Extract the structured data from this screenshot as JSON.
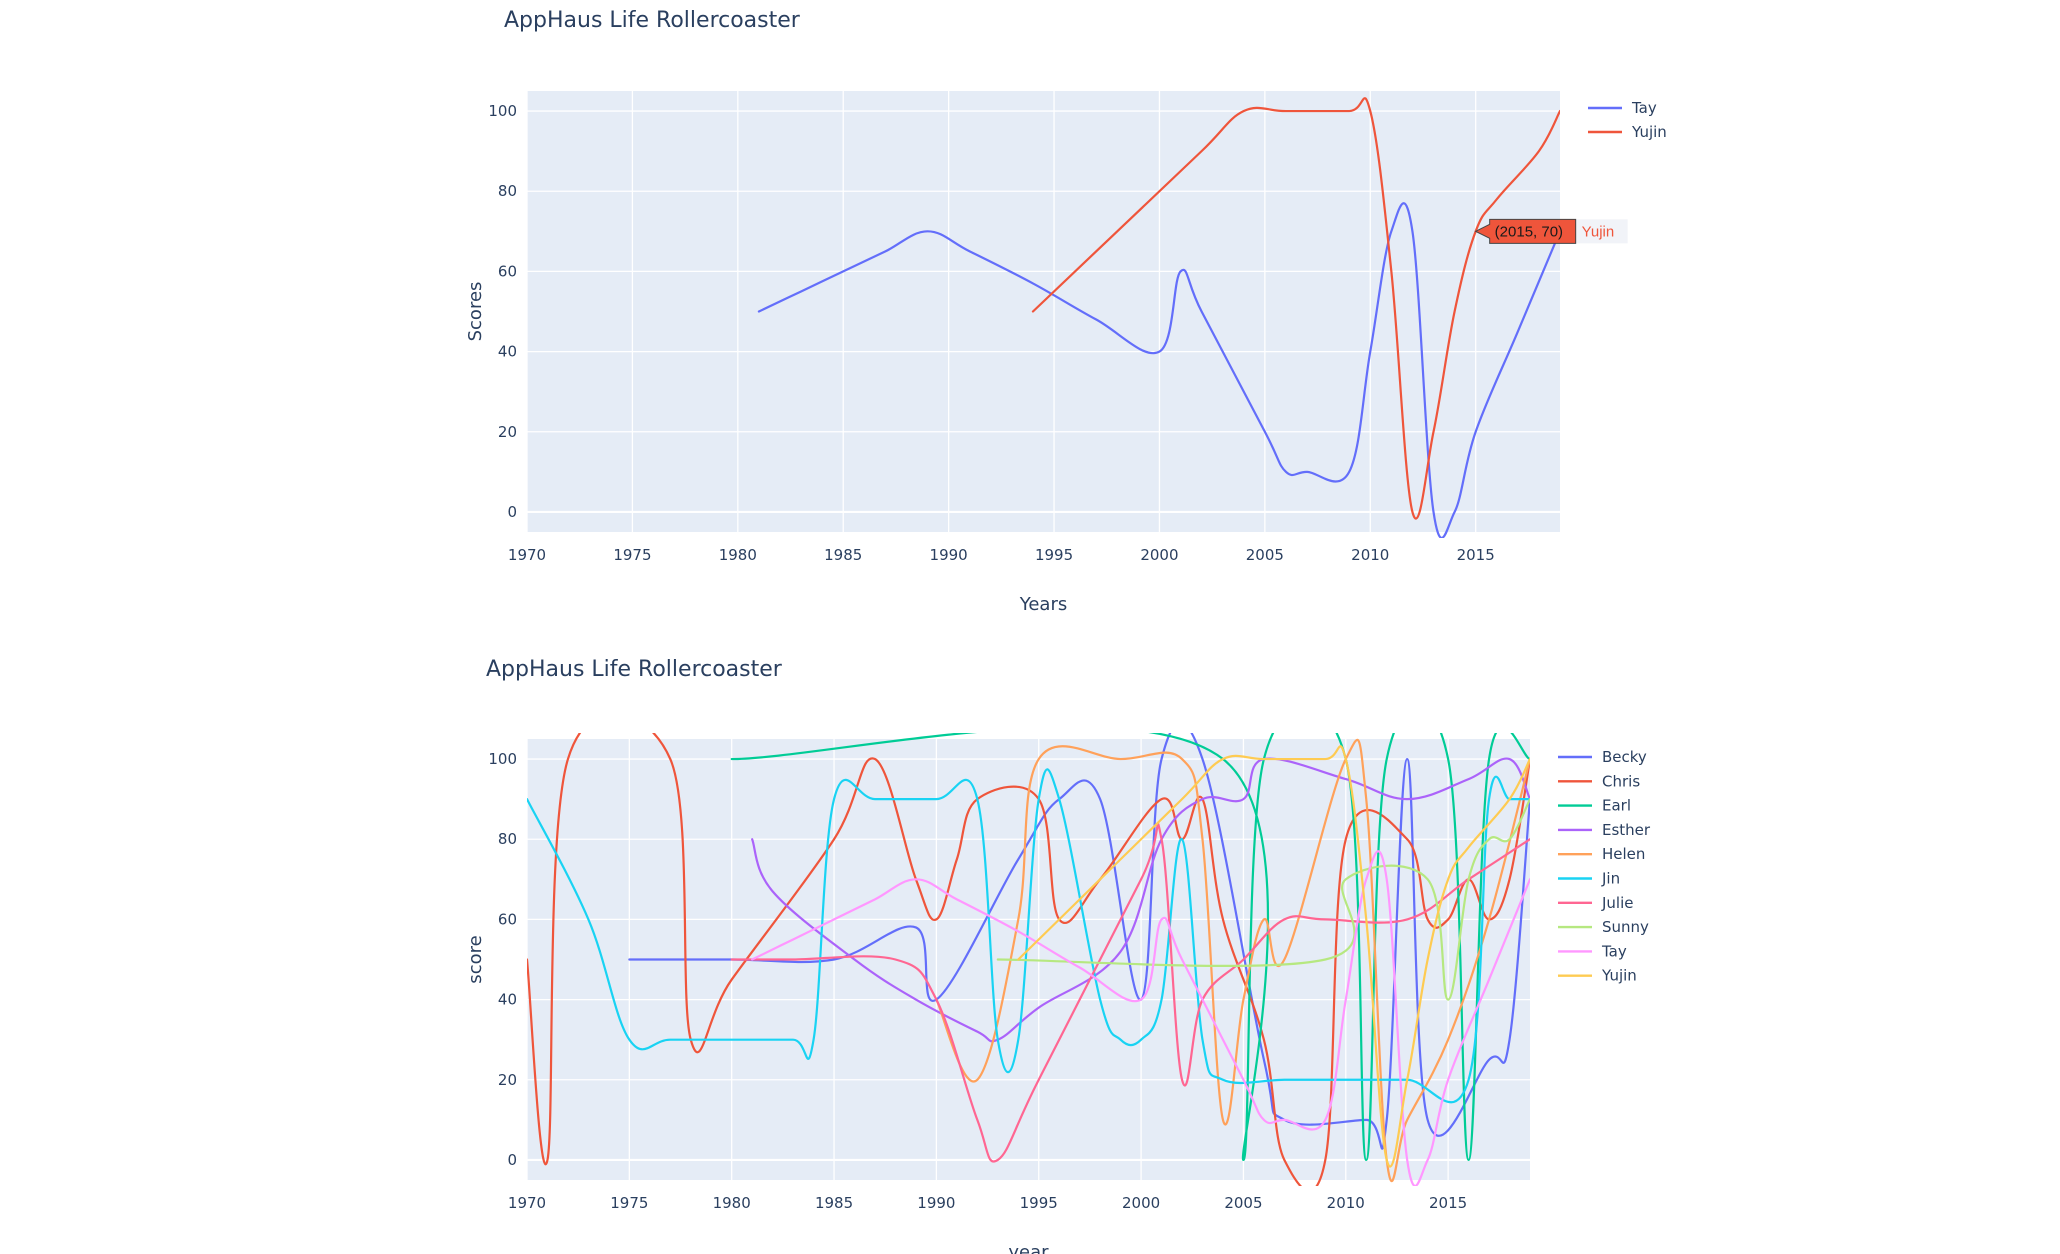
{
  "chart_data": [
    {
      "type": "line",
      "title": "AppHaus Life Rollercoaster",
      "xlabel": "Years",
      "ylabel": "Scores",
      "xlim": [
        1970,
        2019
      ],
      "ylim": [
        -5,
        105
      ],
      "x_ticks": [
        1970,
        1975,
        1980,
        1985,
        1990,
        1995,
        2000,
        2005,
        2010,
        2015
      ],
      "y_ticks": [
        0,
        20,
        40,
        60,
        80,
        100
      ],
      "grid": true,
      "legend": "top-right",
      "series": [
        {
          "name": "Tay",
          "color": "#636efa",
          "x": [
            1981,
            1983,
            1985,
            1987,
            1989,
            1991,
            1994,
            1997,
            2000,
            2001,
            2002,
            2005,
            2006,
            2007,
            2009,
            2010,
            2011,
            2012,
            2013,
            2014,
            2015,
            2017,
            2019
          ],
          "y": [
            50,
            55,
            60,
            65,
            70,
            65,
            57,
            48,
            40,
            60,
            50,
            20,
            10,
            10,
            10,
            40,
            70,
            70,
            0,
            0,
            20,
            45,
            70
          ]
        },
        {
          "name": "Yujin",
          "color": "#ef553b",
          "x": [
            1994,
            1998,
            2002,
            2004,
            2006,
            2009,
            2010,
            2011,
            2012,
            2013,
            2014,
            2015,
            2016,
            2018,
            2019
          ],
          "y": [
            50,
            70,
            90,
            100,
            100,
            100,
            100,
            60,
            0,
            20,
            50,
            70,
            78,
            90,
            100
          ]
        }
      ],
      "hover": {
        "label": "(2015, 70)",
        "series": "Yujin"
      }
    },
    {
      "type": "line",
      "title": "AppHaus Life Rollercoaster",
      "xlabel": "year",
      "ylabel": "score",
      "xlim": [
        1970,
        2019
      ],
      "ylim": [
        -5,
        105
      ],
      "x_ticks": [
        1970,
        1975,
        1980,
        1985,
        1990,
        1995,
        2000,
        2005,
        2010,
        2015
      ],
      "y_ticks": [
        0,
        20,
        40,
        60,
        80,
        100
      ],
      "grid": true,
      "legend": "top-right",
      "series": [
        {
          "name": "Becky",
          "color": "#636efa",
          "x": [
            1975,
            1980,
            1985,
            1989,
            1990,
            1994,
            1996,
            1998,
            2000,
            2001,
            2003,
            2006,
            2007,
            2011,
            2012,
            2013,
            2014,
            2017,
            2018,
            2019
          ],
          "y": [
            50,
            50,
            50,
            58,
            40,
            75,
            90,
            90,
            40,
            100,
            100,
            25,
            10,
            10,
            10,
            100,
            10,
            25,
            30,
            90
          ]
        },
        {
          "name": "Chris",
          "color": "#ef553b",
          "x": [
            1970,
            1971,
            1972,
            1977,
            1978,
            1980,
            1985,
            1987,
            1989,
            1990,
            1991,
            1992,
            1995,
            1996,
            1998,
            2001,
            2002,
            2003,
            2004,
            2006,
            2007,
            2009,
            2010,
            2013,
            2014,
            2015,
            2016,
            2017,
            2018,
            2019
          ],
          "y": [
            50,
            0,
            100,
            100,
            30,
            45,
            80,
            100,
            70,
            60,
            75,
            90,
            90,
            60,
            70,
            90,
            80,
            90,
            60,
            30,
            0,
            0,
            80,
            80,
            60,
            60,
            70,
            60,
            70,
            100
          ]
        },
        {
          "name": "Earl",
          "color": "#00cc96",
          "x": [
            1980,
            2004,
            2005,
            2006,
            2010,
            2011,
            2012,
            2015,
            2016,
            2017,
            2019
          ],
          "y": [
            100,
            100,
            0,
            100,
            100,
            0,
            100,
            100,
            0,
            100,
            100
          ]
        },
        {
          "name": "Esther",
          "color": "#ab63fa",
          "x": [
            1981,
            1982,
            1986,
            1989,
            1992,
            1993,
            1995,
            1999,
            2001,
            2003,
            2005,
            2006,
            2010,
            2013,
            2016,
            2018,
            2019
          ],
          "y": [
            80,
            67,
            50,
            40,
            32,
            30,
            38,
            52,
            80,
            90,
            90,
            100,
            95,
            90,
            95,
            100,
            90
          ]
        },
        {
          "name": "Helen",
          "color": "#ffa15a",
          "x": [
            1990,
            1992,
            1994,
            1995,
            1999,
            2002,
            2003,
            2004,
            2005,
            2006,
            2007,
            2010,
            2011,
            2012,
            2013,
            2015,
            2017,
            2019
          ],
          "y": [
            40,
            20,
            60,
            100,
            100,
            100,
            80,
            10,
            40,
            60,
            50,
            100,
            90,
            0,
            10,
            30,
            60,
            100
          ]
        },
        {
          "name": "Jin",
          "color": "#19d3f3",
          "x": [
            1970,
            1973,
            1975,
            1977,
            1980,
            1983,
            1984,
            1985,
            1987,
            1990,
            1992,
            1993,
            1994,
            1995,
            1996,
            1998,
            1999,
            2000,
            2001,
            2002,
            2003,
            2004,
            2007,
            2010,
            2013,
            2016,
            2017,
            2018,
            2019
          ],
          "y": [
            90,
            60,
            30,
            30,
            30,
            30,
            30,
            90,
            90,
            90,
            90,
            30,
            30,
            90,
            90,
            40,
            30,
            30,
            40,
            80,
            30,
            20,
            20,
            20,
            20,
            20,
            90,
            90,
            90
          ]
        },
        {
          "name": "Julie",
          "color": "#ff6692",
          "x": [
            1980,
            1983,
            1988,
            1990,
            1992,
            1993,
            1995,
            2000,
            2001,
            2002,
            2003,
            2005,
            2007,
            2009,
            2013,
            2016,
            2019
          ],
          "y": [
            50,
            50,
            50,
            40,
            10,
            0,
            20,
            70,
            80,
            20,
            40,
            50,
            60,
            60,
            60,
            70,
            80
          ]
        },
        {
          "name": "Sunny",
          "color": "#b6e880",
          "x": [
            1993,
            2009,
            2010,
            2014,
            2015,
            2016,
            2017,
            2018,
            2019
          ],
          "y": [
            50,
            50,
            70,
            70,
            40,
            70,
            80,
            80,
            90
          ]
        },
        {
          "name": "Tay",
          "color": "#ff97ff",
          "x": [
            1981,
            1983,
            1985,
            1987,
            1989,
            1991,
            1994,
            1997,
            2000,
            2001,
            2002,
            2005,
            2006,
            2007,
            2009,
            2010,
            2011,
            2012,
            2013,
            2014,
            2015,
            2017,
            2019
          ],
          "y": [
            50,
            55,
            60,
            65,
            70,
            65,
            57,
            48,
            40,
            60,
            50,
            20,
            10,
            10,
            10,
            40,
            70,
            70,
            0,
            0,
            20,
            45,
            70
          ]
        },
        {
          "name": "Yujin",
          "color": "#fecb52",
          "x": [
            1994,
            1998,
            2002,
            2004,
            2006,
            2009,
            2010,
            2011,
            2012,
            2013,
            2014,
            2015,
            2016,
            2018,
            2019
          ],
          "y": [
            50,
            70,
            90,
            100,
            100,
            100,
            100,
            60,
            0,
            20,
            50,
            70,
            78,
            90,
            100
          ]
        }
      ]
    }
  ]
}
